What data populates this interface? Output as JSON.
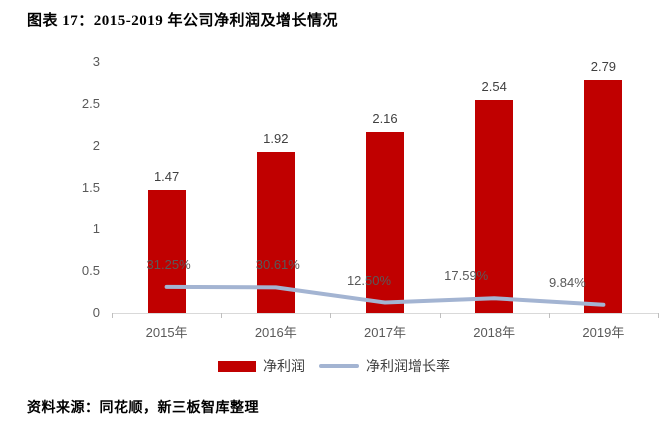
{
  "title": "图表 17：2015-2019 年公司净利润及增长情况",
  "source": "资料来源：同花顺，新三板智库整理",
  "colors": {
    "bar": "#c00000",
    "line": "#a3b4d2",
    "tick_label": "#595959",
    "axis_line": "#d9d9d9"
  },
  "legend": {
    "bar_label": "净利润",
    "line_label": "净利润增长率"
  },
  "chart_data": {
    "type": "bar",
    "subtype": "bar-line-combo",
    "title": "图表 17：2015-2019 年公司净利润及增长情况",
    "categories": [
      "2015年",
      "2016年",
      "2017年",
      "2018年",
      "2019年"
    ],
    "series": [
      {
        "name": "净利润",
        "type": "bar",
        "values": [
          1.47,
          1.92,
          2.16,
          2.54,
          2.79
        ],
        "data_labels": [
          "1.47",
          "1.92",
          "2.16",
          "2.54",
          "2.79"
        ],
        "color": "#c00000"
      },
      {
        "name": "净利润增长率",
        "type": "line",
        "values_percent": [
          31.25,
          30.61,
          12.5,
          17.59,
          9.84
        ],
        "data_labels": [
          "31.25%",
          "30.61%",
          "12.50%",
          "17.59%",
          "9.84%"
        ],
        "color": "#a3b4d2"
      }
    ],
    "xlabel": "",
    "ylabel": "",
    "primary_axis": {
      "min": 0,
      "max": 3,
      "ticks": [
        "0",
        "0.5",
        "1",
        "1.5",
        "2",
        "2.5",
        "3"
      ]
    },
    "secondary_axis": {
      "visible": false,
      "min": 0,
      "max": 300
    },
    "grid": false,
    "legend_position": "bottom"
  }
}
